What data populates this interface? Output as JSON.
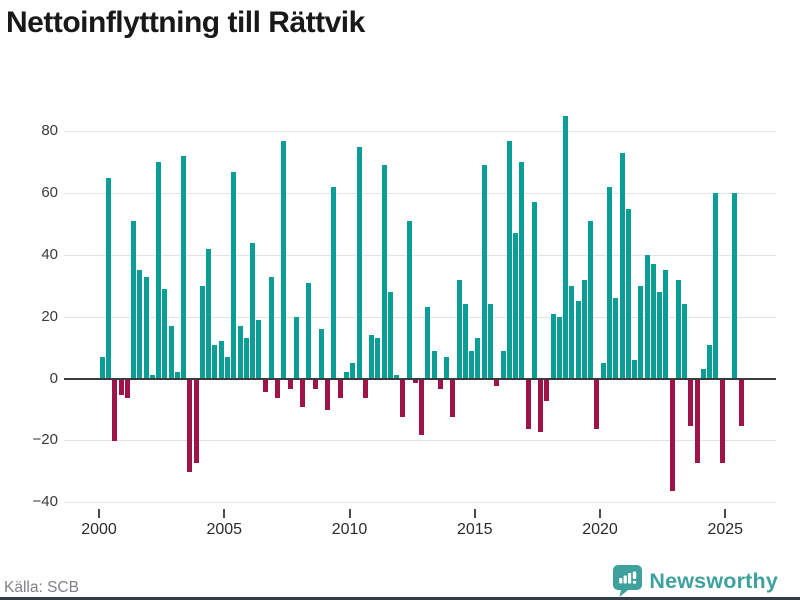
{
  "title": "Nettoinflyttning till Rättvik",
  "footer": {
    "source": "Källa: SCB",
    "brand": "Newsworthy"
  },
  "colors": {
    "positive": "#0a9e97",
    "negative": "#9e1448",
    "grid": "#e3e3e3",
    "zero_line": "#3b3b3b",
    "brand_teal": "#3fa19d"
  },
  "chart_data": {
    "type": "bar",
    "title": "Nettoinflyttning till Rättvik",
    "source": "Källa: SCB",
    "frequency": "quarterly",
    "start_period": "2000 Q1",
    "end_period": "2025 Q3",
    "x_ticks": [
      "2000",
      "2005",
      "2010",
      "2015",
      "2020",
      "2025"
    ],
    "y_ticks": [
      80,
      60,
      40,
      20,
      0,
      -20,
      -40
    ],
    "ylim": [
      -40,
      88
    ],
    "grid": true,
    "series": [
      {
        "name": "Nettoinflyttning",
        "values": [
          7,
          65,
          -20,
          -5,
          -6,
          51,
          35,
          33,
          1,
          70,
          29,
          17,
          2,
          72,
          -30,
          -27,
          30,
          42,
          11,
          12,
          7,
          67,
          17,
          13,
          44,
          19,
          -4,
          33,
          -6,
          77,
          -3,
          20,
          -9,
          31,
          -3,
          16,
          -10,
          62,
          -6,
          2,
          5,
          75,
          -6,
          14,
          13,
          69,
          28,
          1,
          -12,
          51,
          -1,
          -18,
          23,
          9,
          -3,
          7,
          -12,
          32,
          24,
          9,
          13,
          69,
          24,
          -2,
          9,
          77,
          47,
          70,
          -16,
          57,
          -17,
          -7,
          21,
          20,
          85,
          30,
          25,
          32,
          51,
          -16,
          5,
          62,
          26,
          73,
          55,
          6,
          30,
          40,
          37,
          28,
          35,
          -36,
          32,
          24,
          -15,
          -27,
          3,
          11,
          60,
          -27,
          0,
          60,
          -15
        ]
      }
    ]
  }
}
